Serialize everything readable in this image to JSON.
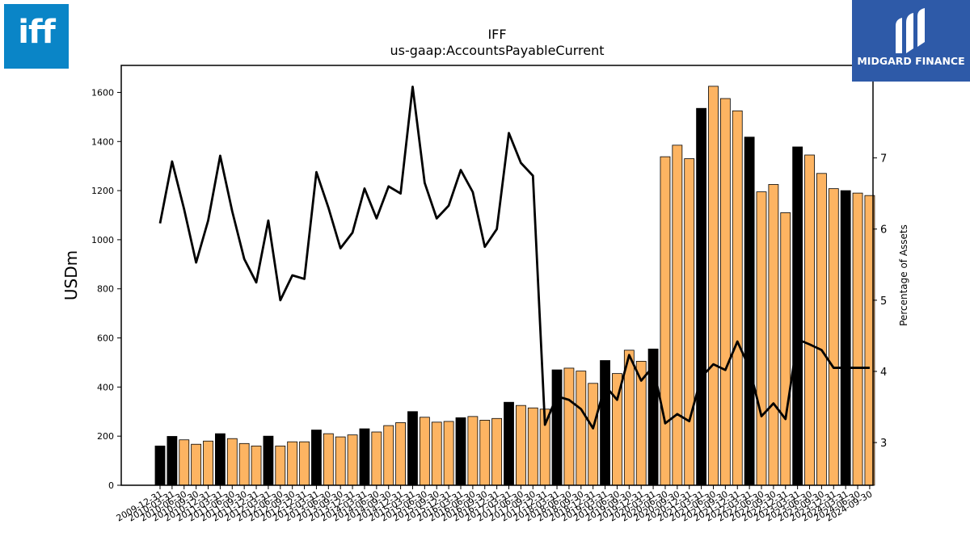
{
  "logos": {
    "left_text": "iff",
    "right_text": "MIDGARD FINANCE"
  },
  "chart_data": {
    "type": "bar",
    "title": "IFF",
    "subtitle": "us-gaap:AccountsPayableCurrent",
    "ylabel": "USDm",
    "y2label": "Percentage of Assets",
    "ylim": [
      0,
      1710
    ],
    "y2lim": [
      2.4,
      8.3
    ],
    "yticks": [
      0,
      200,
      400,
      600,
      800,
      1000,
      1200,
      1400,
      1600
    ],
    "y2ticks": [
      3,
      4,
      5,
      6,
      7
    ],
    "colors": {
      "annual": "#000000",
      "quarter": "#fdb462",
      "line": "#000000"
    },
    "categories": [
      "2009-12-31",
      "2010-03-31",
      "2010-06-30",
      "2010-09-30",
      "2010-12-31",
      "2011-03-31",
      "2011-06-30",
      "2011-09-30",
      "2011-12-31",
      "2012-03-31",
      "2012-06-30",
      "2012-09-30",
      "2012-12-31",
      "2013-03-31",
      "2013-06-30",
      "2013-09-30",
      "2013-12-31",
      "2014-03-31",
      "2014-06-30",
      "2014-09-30",
      "2014-12-31",
      "2015-03-31",
      "2015-06-30",
      "2015-09-30",
      "2015-12-31",
      "2016-03-31",
      "2016-06-30",
      "2016-09-30",
      "2016-12-31",
      "2017-03-31",
      "2017-06-30",
      "2017-09-30",
      "2017-12-31",
      "2018-03-31",
      "2018-06-30",
      "2018-09-30",
      "2018-12-31",
      "2019-03-31",
      "2019-06-30",
      "2019-09-30",
      "2019-12-31",
      "2020-03-31",
      "2020-06-30",
      "2020-09-30",
      "2020-12-31",
      "2021-03-31",
      "2021-06-30",
      "2021-09-30",
      "2021-12-31",
      "2022-03-31",
      "2022-06-30",
      "2022-09-30",
      "2022-12-31",
      "2023-03-31",
      "2023-06-30",
      "2023-09-30",
      "2023-12-31",
      "2024-03-31",
      "2024-06-30",
      "2024-09-30"
    ],
    "annual": [
      true,
      true,
      false,
      false,
      false,
      true,
      false,
      false,
      false,
      true,
      false,
      false,
      false,
      true,
      false,
      false,
      false,
      true,
      false,
      false,
      false,
      true,
      false,
      false,
      false,
      true,
      false,
      false,
      false,
      true,
      false,
      false,
      false,
      true,
      false,
      false,
      false,
      true,
      false,
      false,
      false,
      true,
      false,
      false,
      false,
      true,
      false,
      false,
      false,
      true,
      false,
      false,
      false,
      true,
      false,
      false,
      false,
      true,
      false,
      false
    ],
    "values": [
      160,
      199,
      185,
      167,
      180,
      210,
      190,
      170,
      160,
      200,
      160,
      177,
      177,
      225,
      210,
      197,
      205,
      230,
      217,
      243,
      255,
      300,
      277,
      257,
      260,
      275,
      280,
      265,
      272,
      338,
      325,
      315,
      310,
      470,
      477,
      465,
      415,
      508,
      455,
      550,
      505,
      555,
      1338,
      1385,
      1330,
      1535,
      1625,
      1575,
      1525,
      1418,
      1195,
      1225,
      1110,
      1378,
      1345,
      1270,
      1208,
      1200,
      1190,
      1180
    ],
    "percent_of_assets": [
      6.08,
      6.95,
      6.28,
      5.53,
      6.12,
      7.03,
      6.25,
      5.58,
      5.25,
      6.12,
      5.0,
      5.35,
      5.3,
      6.8,
      6.3,
      5.73,
      5.95,
      6.57,
      6.15,
      6.6,
      6.5,
      8.0,
      6.65,
      6.15,
      6.33,
      6.83,
      6.52,
      5.75,
      6.0,
      7.35,
      6.93,
      6.75,
      3.25,
      3.65,
      3.6,
      3.47,
      3.2,
      3.8,
      3.6,
      4.23,
      3.87,
      4.07,
      3.27,
      3.4,
      3.3,
      3.92,
      4.1,
      4.02,
      4.42,
      4.05,
      3.37,
      3.55,
      3.33,
      4.45,
      4.38,
      4.3,
      4.05,
      4.05,
      4.05,
      4.05
    ]
  }
}
